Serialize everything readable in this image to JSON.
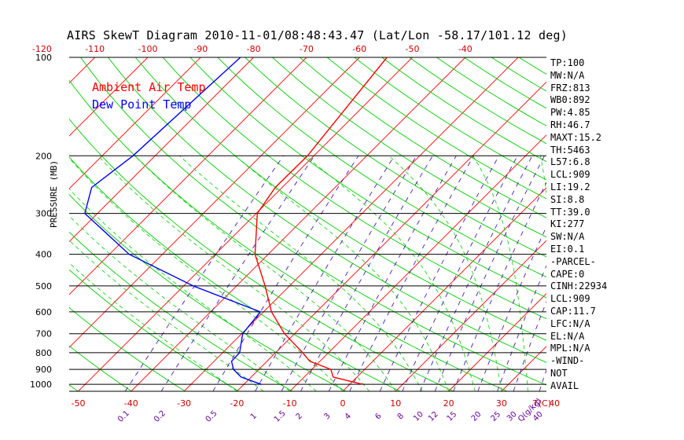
{
  "title": "AIRS SkewT Diagram 2010-11-01/08:48:43.47 (Lat/Lon -58.17/101.12 deg)",
  "legend": {
    "ambient": "Ambient Air Temp",
    "dew": "Dew Point Temp"
  },
  "colors": {
    "ambient": "#ff0000",
    "dew": "#0000ff",
    "isotherm": "#ff0000",
    "dry_adiabat": "#00cc00",
    "moist_adiabat": "#00cc00",
    "mixing_ratio": "#3300aa",
    "isobar": "#000000",
    "axis_label": "#cc0000",
    "mixing_label": "#660099"
  },
  "stats": [
    "TP:100",
    "MW:N/A",
    "FRZ:813",
    "WB0:892",
    "PW:4.85",
    "RH:46.7",
    "MAXT:15.2",
    "TH:5463",
    "L57:6.8",
    "LCL:909",
    "LI:19.2",
    "SI:8.8",
    "TT:39.0",
    "KI:277",
    "SW:N/A",
    "EI:0.1",
    "-PARCEL-",
    "CAPE:0",
    "CINH:22934",
    "LCL:909",
    "CAP:11.7",
    "LFC:N/A",
    "EL:N/A",
    "MPL:N/A",
    "-WIND-",
    "NOT",
    "AVAIL"
  ],
  "chart_data": {
    "type": "line",
    "title": "AIRS SkewT Diagram 2010-11-01/08:48:43.47 (Lat/Lon -58.17/101.12 deg)",
    "ylabel": "PRESSURE (MB)",
    "xlabel": "T(C)",
    "mixing_ratio_unit": "Q(g/kg)",
    "pressure_ticks": [
      100,
      200,
      300,
      400,
      500,
      600,
      700,
      800,
      900,
      1000
    ],
    "pressure_tick_labels": [
      "100",
      "200",
      "300",
      "400",
      "500",
      "600",
      "700",
      "800",
      "900",
      "1000"
    ],
    "ylim": [
      1050,
      100
    ],
    "bottom_temp_ticks": [
      -50,
      -40,
      -30,
      -20,
      -10,
      0,
      10,
      20,
      30,
      40
    ],
    "bottom_temp_labels": [
      "-50",
      "-40",
      "-30",
      "-20",
      "-10",
      "0",
      "10",
      "20",
      "30",
      "40"
    ],
    "top_temp_ticks": [
      -120,
      -110,
      -100,
      -90,
      -80,
      -70,
      -60,
      -50,
      -40
    ],
    "top_temp_labels": [
      "-120",
      "-110",
      "-100",
      "-90",
      "-80",
      "-70",
      "-60",
      "-50",
      "-40"
    ],
    "mixing_ratio_values": [
      0.1,
      0.2,
      0.5,
      1,
      1.5,
      2,
      3,
      4,
      6,
      8,
      10,
      12,
      15,
      20,
      25,
      30,
      40
    ],
    "mixing_ratio_labels": [
      "0.1",
      "0.2",
      "0.5",
      "1",
      "1.5",
      "2",
      "3",
      "4",
      "6",
      "8",
      "10",
      "12",
      "15",
      "20",
      "25",
      "30",
      "40"
    ],
    "series": [
      {
        "name": "Ambient Air Temp",
        "pressure": [
          100,
          200,
          250,
          300,
          400,
          500,
          600,
          700,
          800,
          850,
          900,
          950,
          1000
        ],
        "temperature": [
          -54.8,
          -51.2,
          -51.3,
          -49.8,
          -42.5,
          -34.6,
          -28.5,
          -21.9,
          -14.9,
          -11.9,
          -6.4,
          -4.5,
          2.5
        ]
      },
      {
        "name": "Dew Point Temp",
        "pressure": [
          100,
          200,
          250,
          300,
          400,
          500,
          600,
          700,
          800,
          850,
          900,
          950,
          1000
        ],
        "temperature": [
          -82.5,
          -84.2,
          -86.0,
          -82.4,
          -66.3,
          -48.2,
          -30.6,
          -29.8,
          -26.8,
          -26.7,
          -24.8,
          -21.9,
          -16.7
        ]
      }
    ]
  }
}
